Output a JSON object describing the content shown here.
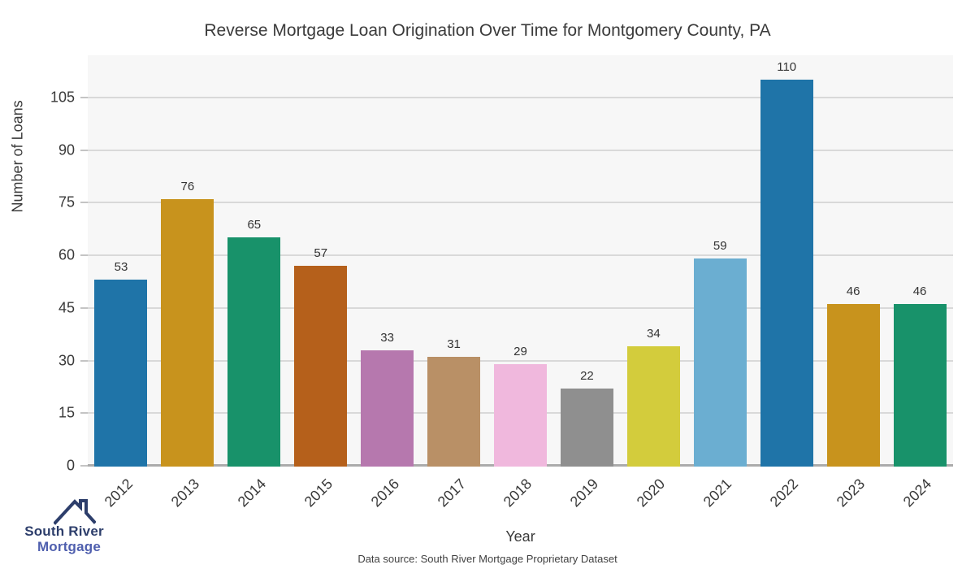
{
  "title": "Reverse Mortgage Loan Origination Over Time for Montgomery County, PA",
  "chart_data": {
    "type": "bar",
    "title": "Reverse Mortgage Loan Origination Over Time for Montgomery County, PA",
    "categories": [
      "2012",
      "2013",
      "2014",
      "2015",
      "2016",
      "2017",
      "2018",
      "2019",
      "2020",
      "2021",
      "2022",
      "2023",
      "2024"
    ],
    "values": [
      53,
      76,
      65,
      57,
      33,
      31,
      29,
      22,
      34,
      59,
      110,
      46,
      46
    ],
    "bar_colors": [
      "#1f74a8",
      "#c8931d",
      "#18926a",
      "#b5601b",
      "#b678ae",
      "#b99066",
      "#f0b8dd",
      "#8f8f8f",
      "#d3cc3c",
      "#6baed1",
      "#1f74a8",
      "#c8931d",
      "#18926a"
    ],
    "xlabel": "Year",
    "ylabel": "Number of Loans",
    "ylim": [
      0,
      117
    ],
    "yticks": [
      0,
      15,
      30,
      45,
      60,
      75,
      90,
      105
    ],
    "grid": true,
    "legend": false,
    "plot_background": "#f7f7f7",
    "gridline_color": "#d9d9d9"
  },
  "footer": {
    "data_source": "Data source: South River Mortgage Proprietary Dataset"
  },
  "logo": {
    "icon": "house-roof-icon",
    "line1": "South River",
    "line2": "Mortgage",
    "line1_color": "#2d3e6b",
    "line2_color": "#4f5fae"
  }
}
